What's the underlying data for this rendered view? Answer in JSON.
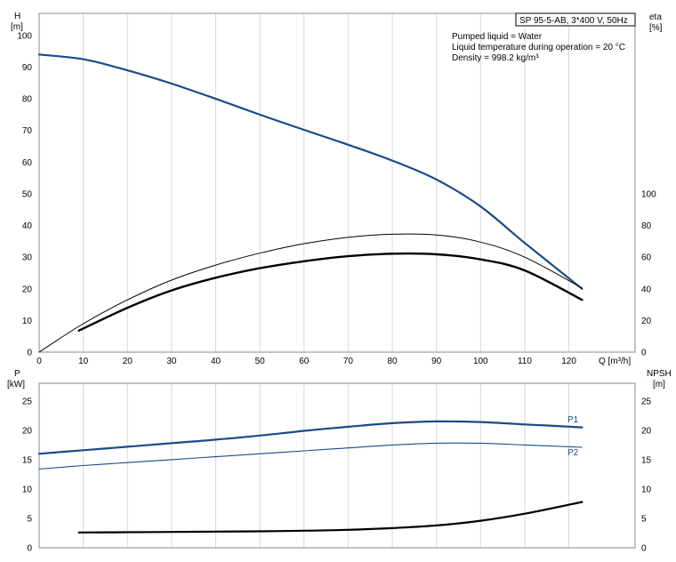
{
  "chart_data": [
    {
      "type": "line",
      "x": {
        "label": "Q [m³/h]",
        "range": [
          0,
          135
        ],
        "ticks": [
          0,
          10,
          20,
          30,
          40,
          50,
          60,
          70,
          80,
          90,
          100,
          110,
          120
        ]
      },
      "y_left": {
        "label_line1": "H",
        "label_line2": "[m]",
        "range": [
          0,
          107
        ],
        "ticks": [
          0,
          10,
          20,
          30,
          40,
          50,
          60,
          70,
          80,
          90,
          100
        ]
      },
      "y_right": {
        "label_line1": "eta",
        "label_line2": "[%]",
        "range": [
          0,
          214
        ],
        "ticks": [
          0,
          20,
          40,
          60,
          80,
          100
        ]
      },
      "grid": true,
      "header": {
        "title": "SP 95-5-AB, 3*400 V, 50Hz",
        "lines": [
          "Pumped liquid = Water",
          "Liquid temperature during operation = 20 °C",
          "Density = 998.2 kg/m³"
        ]
      },
      "series": [
        {
          "color": "#1a4a8a",
          "width": 2.2,
          "axis": "left",
          "x": [
            0,
            10,
            20,
            30,
            40,
            50,
            60,
            70,
            80,
            90,
            100,
            110,
            123
          ],
          "y": [
            94,
            92.5,
            89,
            84.8,
            80,
            75,
            70.2,
            65.5,
            60.5,
            54.5,
            46,
            34.5,
            20
          ]
        },
        {
          "color": "#000000",
          "width": 1,
          "axis": "right",
          "x": [
            0,
            10,
            20,
            30,
            40,
            50,
            60,
            70,
            80,
            90,
            100,
            110,
            123
          ],
          "y": [
            0,
            18,
            33,
            45.5,
            55,
            62.5,
            68.5,
            72.5,
            74.5,
            74,
            69.5,
            60,
            40.5
          ]
        },
        {
          "color": "#000000",
          "width": 2.4,
          "axis": "left",
          "x": [
            9,
            20,
            30,
            40,
            50,
            60,
            70,
            80,
            90,
            100,
            110,
            123
          ],
          "y": [
            6.8,
            14,
            19.5,
            23.5,
            26.5,
            28.7,
            30.3,
            31.1,
            30.9,
            29.3,
            25.8,
            16.5
          ]
        }
      ]
    },
    {
      "type": "line",
      "x": {
        "range": [
          0,
          135
        ],
        "ticks": [
          0,
          10,
          20,
          30,
          40,
          50,
          60,
          70,
          80,
          90,
          100,
          110,
          120
        ]
      },
      "y_left": {
        "label_line1": "P",
        "label_line2": "[kW]",
        "range": [
          0,
          28
        ],
        "ticks": [
          0,
          5,
          10,
          15,
          20,
          25
        ]
      },
      "y_right": {
        "label_line1": "NPSH",
        "label_line2": "[m]",
        "range": [
          0,
          28
        ],
        "ticks": [
          0,
          5,
          10,
          15,
          20,
          25
        ]
      },
      "grid": true,
      "series": [
        {
          "name": "P1",
          "color": "#1a4a8a",
          "width": 2.2,
          "x": [
            0,
            10,
            20,
            30,
            40,
            50,
            60,
            70,
            80,
            90,
            100,
            110,
            123
          ],
          "y": [
            16,
            16.6,
            17.2,
            17.8,
            18.4,
            19.1,
            19.9,
            20.6,
            21.2,
            21.5,
            21.4,
            21.0,
            20.5
          ]
        },
        {
          "name": "P2",
          "color": "#1a4a8a",
          "width": 1.1,
          "x": [
            0,
            10,
            20,
            30,
            40,
            50,
            60,
            70,
            80,
            90,
            100,
            110,
            123
          ],
          "y": [
            13.4,
            14,
            14.5,
            15,
            15.5,
            16,
            16.5,
            17,
            17.5,
            17.8,
            17.8,
            17.5,
            17.1
          ]
        },
        {
          "color": "#000000",
          "width": 2.2,
          "x": [
            9,
            20,
            30,
            40,
            50,
            60,
            70,
            80,
            90,
            100,
            110,
            123
          ],
          "y": [
            2.6,
            2.65,
            2.7,
            2.75,
            2.8,
            2.9,
            3.05,
            3.35,
            3.8,
            4.6,
            5.8,
            7.8
          ]
        }
      ]
    }
  ]
}
